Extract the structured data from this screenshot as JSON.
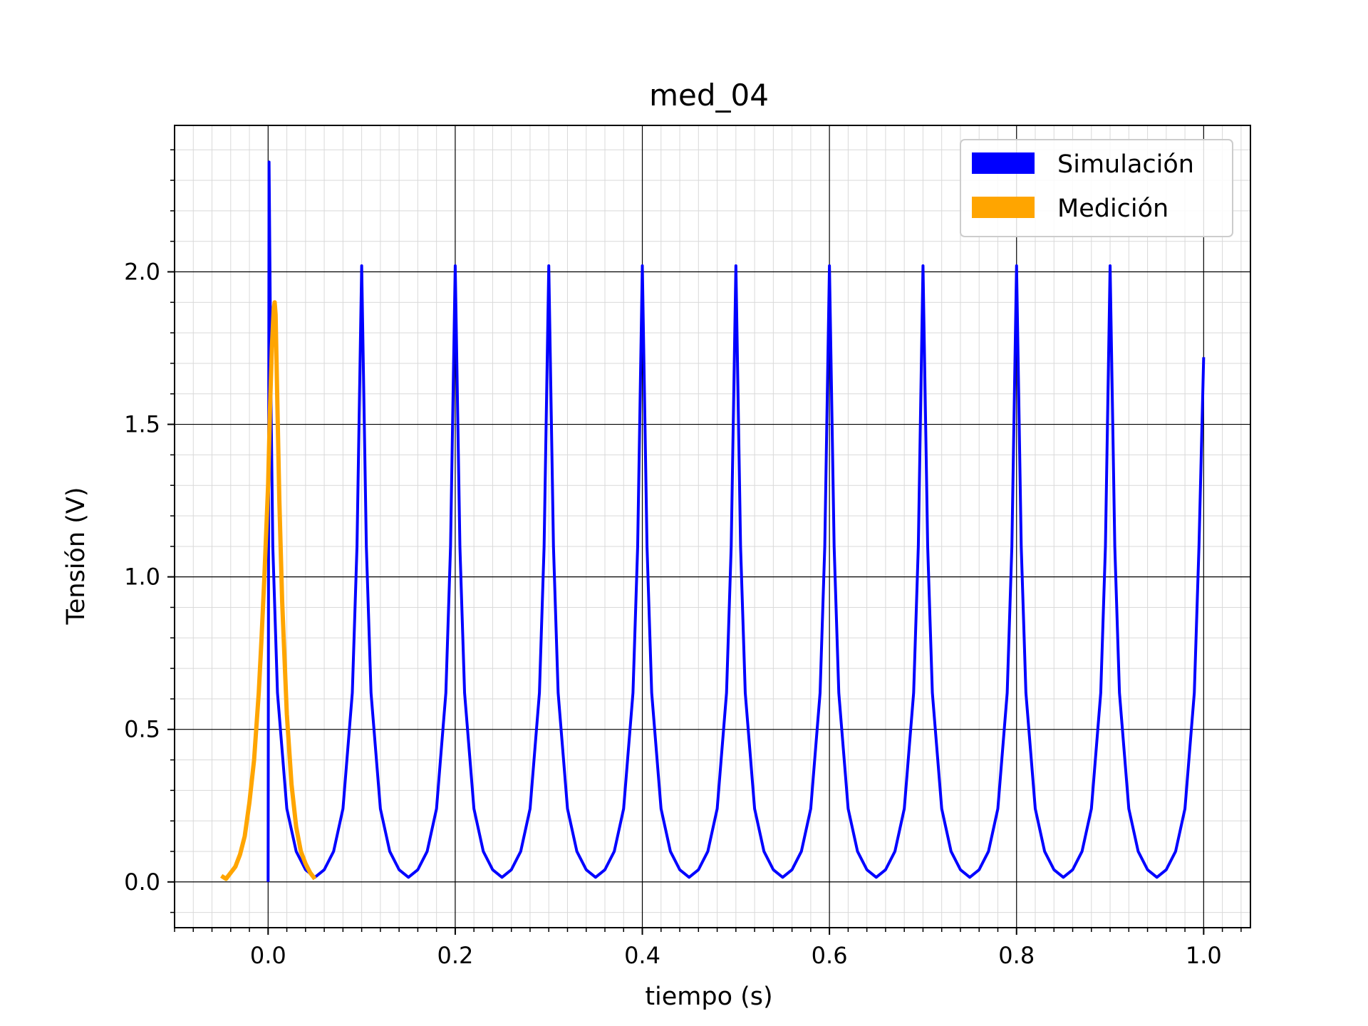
{
  "chart_data": {
    "type": "line",
    "title": "med_04",
    "xlabel": "tiempo (s)",
    "ylabel": "Tensión (V)",
    "xlim": [
      -0.1,
      1.05
    ],
    "ylim": [
      -0.15,
      2.48
    ],
    "xticks": [
      0.0,
      0.2,
      0.4,
      0.6,
      0.8,
      1.0
    ],
    "xtick_labels": [
      "0.0",
      "0.2",
      "0.4",
      "0.6",
      "0.8",
      "1.0"
    ],
    "yticks": [
      0.0,
      0.5,
      1.0,
      1.5,
      2.0
    ],
    "ytick_labels": [
      "0.0",
      "0.5",
      "1.0",
      "1.5",
      "2.0"
    ],
    "grid": true,
    "minor_grid": true,
    "legend_position": "top-right",
    "series": [
      {
        "name": "Simulación",
        "color": "#0000ff",
        "x": [
          0.0,
          0.001,
          0.002,
          0.003,
          0.005,
          0.01,
          0.02,
          0.03,
          0.04,
          0.05,
          0.06,
          0.07,
          0.08,
          0.09,
          0.095,
          0.1,
          0.105,
          0.11,
          0.12,
          0.13,
          0.14,
          0.15,
          0.16,
          0.17,
          0.18,
          0.19,
          0.195,
          0.2,
          0.205,
          0.21,
          0.22,
          0.23,
          0.24,
          0.25,
          0.26,
          0.27,
          0.28,
          0.29,
          0.295,
          0.3,
          0.305,
          0.31,
          0.32,
          0.33,
          0.34,
          0.35,
          0.36,
          0.37,
          0.38,
          0.39,
          0.395,
          0.4,
          0.405,
          0.41,
          0.42,
          0.43,
          0.44,
          0.45,
          0.46,
          0.47,
          0.48,
          0.49,
          0.495,
          0.5,
          0.505,
          0.51,
          0.52,
          0.53,
          0.54,
          0.55,
          0.56,
          0.57,
          0.58,
          0.59,
          0.595,
          0.6,
          0.605,
          0.61,
          0.62,
          0.63,
          0.64,
          0.65,
          0.66,
          0.67,
          0.68,
          0.69,
          0.695,
          0.7,
          0.705,
          0.71,
          0.72,
          0.73,
          0.74,
          0.75,
          0.76,
          0.77,
          0.78,
          0.79,
          0.795,
          0.8,
          0.805,
          0.81,
          0.82,
          0.83,
          0.84,
          0.85,
          0.86,
          0.87,
          0.88,
          0.89,
          0.895,
          0.9,
          0.905,
          0.91,
          0.92,
          0.93,
          0.94,
          0.95,
          0.96,
          0.97,
          0.98,
          0.99,
          0.995,
          1.0
        ],
        "y": [
          0.0,
          2.36,
          2.0,
          1.6,
          1.1,
          0.62,
          0.24,
          0.1,
          0.04,
          0.015,
          0.04,
          0.1,
          0.24,
          0.62,
          1.1,
          2.02,
          1.1,
          0.62,
          0.24,
          0.1,
          0.04,
          0.015,
          0.04,
          0.1,
          0.24,
          0.62,
          1.1,
          2.02,
          1.1,
          0.62,
          0.24,
          0.1,
          0.04,
          0.015,
          0.04,
          0.1,
          0.24,
          0.62,
          1.1,
          2.02,
          1.1,
          0.62,
          0.24,
          0.1,
          0.04,
          0.015,
          0.04,
          0.1,
          0.24,
          0.62,
          1.1,
          2.02,
          1.1,
          0.62,
          0.24,
          0.1,
          0.04,
          0.015,
          0.04,
          0.1,
          0.24,
          0.62,
          1.1,
          2.02,
          1.1,
          0.62,
          0.24,
          0.1,
          0.04,
          0.015,
          0.04,
          0.1,
          0.24,
          0.62,
          1.1,
          2.02,
          1.1,
          0.62,
          0.24,
          0.1,
          0.04,
          0.015,
          0.04,
          0.1,
          0.24,
          0.62,
          1.1,
          2.02,
          1.1,
          0.62,
          0.24,
          0.1,
          0.04,
          0.015,
          0.04,
          0.1,
          0.24,
          0.62,
          1.1,
          2.02,
          1.1,
          0.62,
          0.24,
          0.1,
          0.04,
          0.015,
          0.04,
          0.1,
          0.24,
          0.62,
          1.1,
          2.02,
          1.1,
          0.62,
          0.24,
          0.1,
          0.04,
          0.015,
          0.04,
          0.1,
          0.24,
          0.62,
          1.1,
          1.72
        ]
      },
      {
        "name": "Medición",
        "color": "#ffa500",
        "x": [
          -0.05,
          -0.045,
          -0.04,
          -0.035,
          -0.03,
          -0.025,
          -0.02,
          -0.015,
          -0.01,
          -0.007,
          -0.004,
          -0.002,
          0.0,
          0.002,
          0.004,
          0.006,
          0.007,
          0.008,
          0.01,
          0.012,
          0.015,
          0.02,
          0.025,
          0.03,
          0.035,
          0.04,
          0.045,
          0.05
        ],
        "y": [
          0.02,
          0.01,
          0.03,
          0.05,
          0.09,
          0.15,
          0.26,
          0.4,
          0.62,
          0.8,
          1.0,
          1.15,
          1.3,
          1.55,
          1.75,
          1.88,
          1.9,
          1.86,
          1.55,
          1.25,
          0.92,
          0.55,
          0.32,
          0.18,
          0.1,
          0.06,
          0.03,
          0.01
        ]
      }
    ]
  }
}
